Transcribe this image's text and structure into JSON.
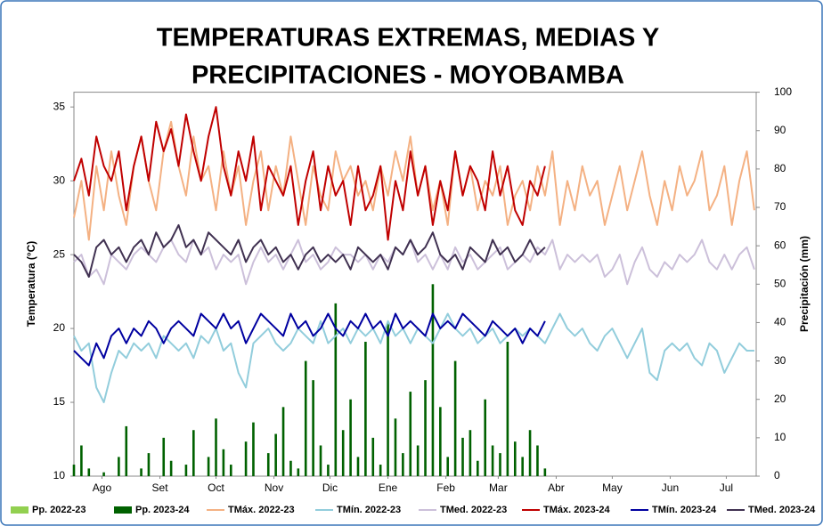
{
  "chart_data": {
    "type": "combo",
    "title": [
      "TEMPERATURAS EXTREMAS, MEDIAS Y",
      "PRECIPITACIONES - MOYOBAMBA"
    ],
    "y_label": "Temperatura (°C)",
    "y2_label": "Precipitación (mm)",
    "xlim": [
      0,
      365
    ],
    "ylim": [
      10,
      36
    ],
    "y2lim": [
      0,
      100
    ],
    "xticks": [
      {
        "value": 15,
        "label": "Ago"
      },
      {
        "value": 46,
        "label": "Set"
      },
      {
        "value": 76,
        "label": "Oct"
      },
      {
        "value": 107,
        "label": "Nov"
      },
      {
        "value": 137,
        "label": "Dic"
      },
      {
        "value": 168,
        "label": "Ene"
      },
      {
        "value": 199,
        "label": "Feb"
      },
      {
        "value": 227,
        "label": "Mar"
      },
      {
        "value": 258,
        "label": "Abr"
      },
      {
        "value": 288,
        "label": "May"
      },
      {
        "value": 319,
        "label": "Jun"
      },
      {
        "value": 349,
        "label": "Jul"
      }
    ],
    "yticks": [
      10,
      15,
      20,
      25,
      30,
      35
    ],
    "y2ticks": [
      0,
      10,
      20,
      30,
      40,
      50,
      60,
      70,
      80,
      90,
      100
    ],
    "grid": false,
    "x": [
      0,
      4,
      8,
      12,
      16,
      20,
      24,
      28,
      32,
      36,
      40,
      44,
      48,
      52,
      56,
      60,
      64,
      68,
      72,
      76,
      80,
      84,
      88,
      92,
      96,
      100,
      104,
      108,
      112,
      116,
      120,
      124,
      128,
      132,
      136,
      140,
      144,
      148,
      152,
      156,
      160,
      164,
      168,
      172,
      176,
      180,
      184,
      188,
      192,
      196,
      200,
      204,
      208,
      212,
      216,
      220,
      224,
      228,
      232,
      236,
      240,
      244,
      248,
      252,
      256,
      260,
      264,
      268,
      272,
      276,
      280,
      284,
      288,
      292,
      296,
      300,
      304,
      308,
      312,
      316,
      320,
      324,
      328,
      332,
      336,
      340,
      344,
      348,
      352,
      356,
      360,
      364
    ],
    "series": [
      {
        "name": "Pp. 2022-23",
        "type": "bar",
        "axis": "y2",
        "color": "#92d050",
        "values": [
          null,
          null,
          null,
          null,
          null,
          null,
          null,
          null,
          null,
          null,
          null,
          null,
          null,
          null,
          null,
          null,
          null,
          null,
          null,
          null,
          null,
          null,
          null,
          null,
          null,
          null,
          null,
          null,
          null,
          null,
          null,
          null,
          null,
          null,
          null,
          null,
          null,
          null,
          null,
          null,
          null,
          null,
          null,
          null,
          null,
          null,
          null,
          null,
          null,
          null,
          null,
          null,
          null,
          null,
          null,
          null,
          null,
          null,
          null,
          null,
          null,
          null,
          null,
          null,
          null,
          null,
          null,
          null,
          null,
          null,
          null,
          null,
          null,
          null,
          null,
          null,
          null,
          null,
          null,
          null,
          null,
          null,
          null,
          null,
          null,
          null,
          null,
          null,
          null,
          null,
          null,
          null
        ]
      },
      {
        "name": "Pp. 2023-24",
        "type": "bar",
        "axis": "y2",
        "color": "#006100",
        "values": [
          3,
          8,
          2,
          0,
          1,
          0,
          5,
          13,
          0,
          2,
          6,
          0,
          10,
          4,
          0,
          3,
          12,
          0,
          5,
          15,
          7,
          3,
          0,
          9,
          14,
          0,
          6,
          11,
          18,
          4,
          2,
          30,
          25,
          8,
          3,
          45,
          12,
          20,
          5,
          35,
          10,
          3,
          40,
          15,
          6,
          22,
          8,
          25,
          50,
          18,
          5,
          30,
          10,
          12,
          4,
          20,
          8,
          6,
          35,
          9,
          5,
          12,
          8,
          2,
          null,
          null,
          null,
          null,
          null,
          null,
          null,
          null,
          null,
          null,
          null,
          null,
          null,
          null,
          null,
          null,
          null,
          null,
          null,
          null,
          null,
          null,
          null,
          null,
          null,
          null,
          null,
          null
        ]
      },
      {
        "name": "TMáx. 2022-23",
        "type": "line",
        "color": "#f4b183",
        "values": [
          27.5,
          30,
          26,
          31,
          28,
          32,
          29,
          27,
          31,
          33,
          30,
          28,
          32,
          34,
          31,
          29,
          33,
          30,
          31,
          28,
          32,
          29,
          31,
          27,
          30,
          32,
          28,
          31,
          29,
          33,
          30,
          27,
          31,
          29,
          28,
          32,
          30,
          31,
          29,
          30,
          28,
          31,
          29,
          32,
          30,
          33,
          29,
          31,
          28,
          30,
          27,
          32,
          29,
          31,
          28,
          30,
          29,
          31,
          27,
          29,
          30,
          28,
          31,
          29,
          32,
          27,
          30,
          28,
          31,
          29,
          30,
          27,
          29,
          31,
          28,
          30,
          32,
          29,
          27,
          30,
          28,
          31,
          29,
          30,
          32,
          28,
          29,
          31,
          27,
          30,
          32,
          28
        ]
      },
      {
        "name": "TMín. 2022-23",
        "type": "line",
        "color": "#92cddc",
        "values": [
          19.5,
          18.5,
          19,
          16,
          15,
          17,
          18.5,
          18,
          19,
          18.5,
          19,
          18,
          19.5,
          19,
          18.5,
          19,
          18,
          19.5,
          19,
          20,
          18.5,
          19,
          17,
          16,
          19,
          19.5,
          20,
          19,
          18.5,
          19,
          20,
          19.5,
          19,
          20.5,
          19,
          19.5,
          20,
          19,
          20,
          19.5,
          20,
          19,
          20.5,
          19.5,
          20,
          19,
          20,
          19.5,
          19,
          20,
          21,
          20,
          19.5,
          20,
          19,
          19.5,
          20,
          19,
          19.5,
          20,
          19.5,
          20,
          19.5,
          19,
          20,
          21,
          20,
          19.5,
          20,
          19,
          18.5,
          19.5,
          20,
          19,
          18,
          19,
          20,
          17,
          16.5,
          18.5,
          19,
          18.5,
          19,
          18,
          17.5,
          19,
          18.5,
          17,
          18,
          19,
          18.5,
          18.5
        ]
      },
      {
        "name": "TMed. 2022-23",
        "type": "line",
        "color": "#ccc0da",
        "values": [
          24.5,
          25,
          23.5,
          24,
          23,
          25,
          24.5,
          24,
          25,
          25.5,
          25,
          24.5,
          25.5,
          26,
          25,
          24.5,
          26,
          25,
          25.5,
          24,
          25,
          24.5,
          25,
          23,
          24.5,
          25.5,
          24.5,
          25,
          24,
          25,
          26,
          24.5,
          25,
          24,
          24.5,
          25.5,
          25,
          25,
          24.5,
          25,
          24,
          25,
          24.5,
          25.5,
          25,
          26,
          24.5,
          25,
          24,
          25,
          24,
          25.5,
          24.5,
          25,
          24,
          24.5,
          25,
          25.5,
          24,
          24.5,
          25,
          24.5,
          25.5,
          25,
          26,
          24,
          25,
          24.5,
          25,
          24.5,
          25,
          23.5,
          24,
          25,
          23,
          24.5,
          25.5,
          24,
          23.5,
          24.5,
          24,
          25,
          24.5,
          25,
          26,
          24.5,
          24,
          25,
          24,
          25,
          25.5,
          24
        ]
      },
      {
        "name": "TMáx. 2023-24",
        "type": "line",
        "color": "#c00000",
        "values": [
          30,
          31.5,
          29,
          33,
          31,
          30,
          32,
          28,
          31,
          33,
          30,
          34,
          32,
          33.5,
          31,
          34.5,
          32,
          30,
          33,
          35,
          31,
          29,
          32,
          30,
          33,
          28,
          31,
          30,
          29,
          31,
          27,
          30,
          32,
          28,
          31,
          29,
          30,
          27,
          31,
          28,
          29,
          31,
          26,
          30,
          28,
          32,
          29,
          31,
          27,
          30,
          28,
          32,
          29,
          31,
          30,
          28,
          32,
          29,
          31,
          28,
          27,
          30,
          29,
          31,
          null,
          null,
          null,
          null,
          null,
          null,
          null,
          null,
          null,
          null,
          null,
          null,
          null,
          null,
          null,
          null,
          null,
          null,
          null,
          null,
          null,
          null,
          null,
          null,
          null,
          null,
          null,
          null
        ]
      },
      {
        "name": "TMín. 2023-24",
        "type": "line",
        "color": "#0000a0",
        "values": [
          18.5,
          18,
          17.5,
          19,
          18,
          19.5,
          20,
          19,
          20,
          19.5,
          20.5,
          20,
          19,
          20,
          20.5,
          20,
          19.5,
          21,
          20.5,
          20,
          21,
          20,
          20.5,
          19,
          20,
          21,
          20.5,
          20,
          19.5,
          21,
          20,
          20.5,
          19.5,
          20,
          21,
          20,
          19.5,
          20.5,
          20,
          21,
          20,
          20.5,
          19.5,
          21,
          20,
          20.5,
          20,
          19.5,
          21,
          20,
          20.5,
          20,
          21,
          20.5,
          20,
          19.5,
          20.5,
          20,
          19.5,
          20,
          19,
          20,
          19.5,
          20.5,
          null,
          null,
          null,
          null,
          null,
          null,
          null,
          null,
          null,
          null,
          null,
          null,
          null,
          null,
          null,
          null,
          null,
          null,
          null,
          null,
          null,
          null,
          null,
          null,
          null,
          null,
          null,
          null
        ]
      },
      {
        "name": "TMed. 2023-24",
        "type": "line",
        "color": "#403151",
        "values": [
          25,
          24.5,
          23.5,
          25.5,
          26,
          25,
          25.5,
          24.5,
          25.5,
          26,
          25,
          26.5,
          25.5,
          26,
          27,
          25.5,
          26,
          25,
          26.5,
          26,
          25.5,
          25,
          26,
          24.5,
          25.5,
          26,
          25,
          25.5,
          24.5,
          25,
          24,
          25,
          25.5,
          24.5,
          25,
          24.5,
          25,
          24,
          25.5,
          25,
          24.5,
          25,
          24,
          25.5,
          25,
          26,
          25,
          25.5,
          26.5,
          25,
          24.5,
          25,
          24,
          25.5,
          25,
          24.5,
          26,
          25,
          25.5,
          24.5,
          25,
          26,
          25,
          25.5,
          null,
          null,
          null,
          null,
          null,
          null,
          null,
          null,
          null,
          null,
          null,
          null,
          null,
          null,
          null,
          null,
          null,
          null,
          null,
          null,
          null,
          null,
          null,
          null,
          null,
          null,
          null,
          null
        ]
      }
    ]
  }
}
